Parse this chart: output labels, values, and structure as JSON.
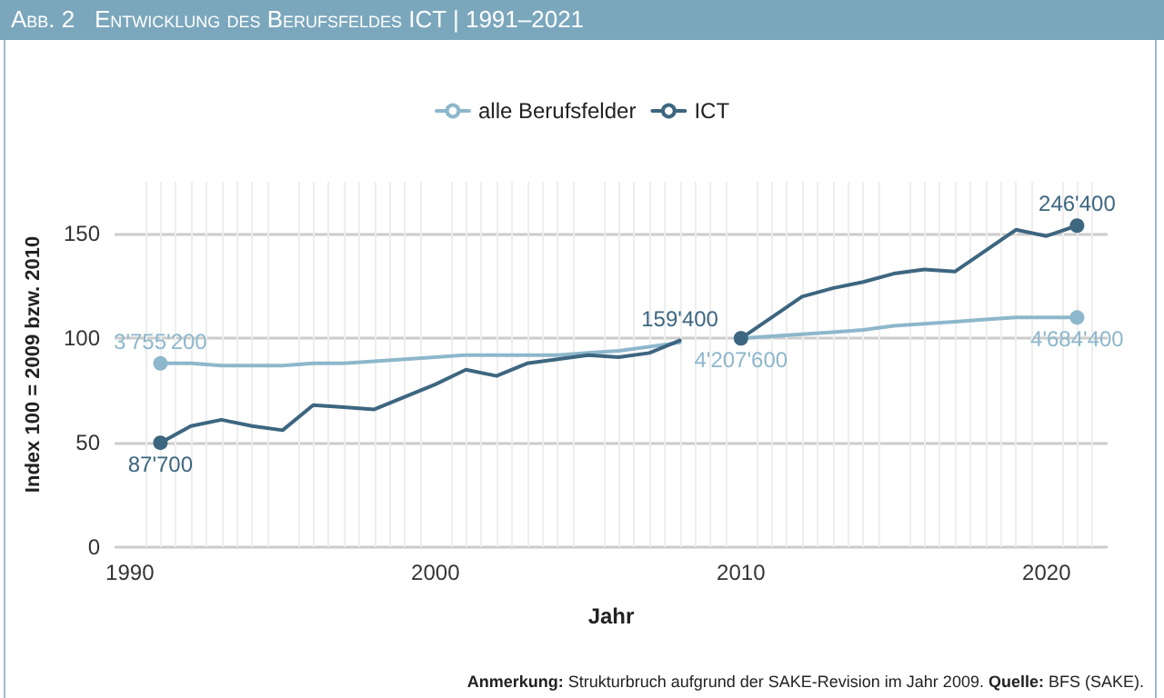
{
  "chart_data": {
    "type": "line",
    "title": "Abb. 2   Entwicklung des Berufsfeldes ICT | 1991–2021",
    "xlabel": "Jahr",
    "ylabel": "Index 100 = 2009 bzw. 2010",
    "x": [
      1991,
      1992,
      1993,
      1994,
      1995,
      1996,
      1997,
      1998,
      1999,
      2000,
      2001,
      2002,
      2003,
      2004,
      2005,
      2006,
      2007,
      2008,
      2009,
      2010,
      2011,
      2012,
      2013,
      2014,
      2015,
      2016,
      2017,
      2018,
      2019,
      2020,
      2021
    ],
    "series": [
      {
        "name": "alle Berufsfelder",
        "color": "#8db7cb",
        "values": [
          88,
          88,
          87,
          87,
          87,
          88,
          88,
          89,
          90,
          91,
          92,
          92,
          92,
          92,
          93,
          94,
          96,
          98,
          null,
          100,
          101,
          102,
          103,
          104,
          106,
          107,
          108,
          109,
          110,
          110,
          110
        ]
      },
      {
        "name": "ICT",
        "color": "#3d6680",
        "values": [
          50,
          58,
          61,
          58,
          56,
          68,
          67,
          66,
          72,
          78,
          85,
          82,
          88,
          90,
          92,
          91,
          93,
          99,
          null,
          100,
          110,
          120,
          124,
          127,
          131,
          133,
          132,
          142,
          152,
          149,
          154
        ]
      }
    ],
    "xlim": [
      1989.5,
      2022
    ],
    "xticks": [
      1990,
      2000,
      2010,
      2020
    ],
    "ylim": [
      0,
      175
    ],
    "yticks": [
      0,
      50,
      100,
      150
    ],
    "grid": true,
    "legend": "top",
    "marker": "none",
    "line_style": "solid",
    "annotations": [
      {
        "text": "3'755'200",
        "x": 1991,
        "y": 88
      },
      {
        "text": "87'700",
        "x": 1991,
        "y": 50
      },
      {
        "text": "159'400",
        "x": 2008,
        "y": 99
      },
      {
        "text": "4'207'600",
        "x": 2010,
        "y": 100
      },
      {
        "text": "246'400",
        "x": 2021,
        "y": 154
      },
      {
        "text": "4'684'400",
        "x": 2021,
        "y": 110
      },
      "Anmerkung: Strukturbruch aufgrund der SAKE-Revision im Jahr 2009. Quelle: BFS (SAKE)."
    ]
  }
}
